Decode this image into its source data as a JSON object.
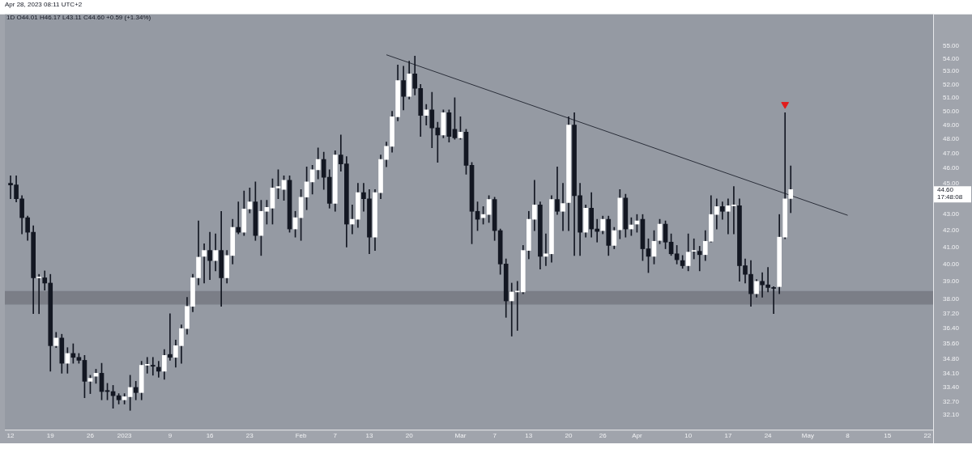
{
  "chart_data": {
    "type": "candlestick",
    "title": "1D  O44.01  H46.17  L43.11  C44.60  +0.59 (+1.34%)",
    "subtitle": "Apr 28, 2023 08:11 UTC+2",
    "x": [
      "2022-12-12",
      "2022-12-13",
      "2022-12-14",
      "2022-12-15",
      "2022-12-16",
      "2022-12-17",
      "2022-12-18",
      "2022-12-19",
      "2022-12-20",
      "2022-12-21",
      "2022-12-22",
      "2022-12-23",
      "2022-12-24",
      "2022-12-25",
      "2022-12-26",
      "2022-12-27",
      "2022-12-28",
      "2022-12-29",
      "2022-12-30",
      "2022-12-31",
      "2023-01-01",
      "2023-01-02",
      "2023-01-03",
      "2023-01-04",
      "2023-01-05",
      "2023-01-06",
      "2023-01-07",
      "2023-01-08",
      "2023-01-09",
      "2023-01-10",
      "2023-01-11",
      "2023-01-12",
      "2023-01-13",
      "2023-01-14",
      "2023-01-15",
      "2023-01-16",
      "2023-01-17",
      "2023-01-18",
      "2023-01-19",
      "2023-01-20",
      "2023-01-21",
      "2023-01-22",
      "2023-01-23",
      "2023-01-24",
      "2023-01-25",
      "2023-01-26",
      "2023-01-27",
      "2023-01-28",
      "2023-01-29",
      "2023-01-30",
      "2023-01-31",
      "2023-02-01",
      "2023-02-02",
      "2023-02-03",
      "2023-02-04",
      "2023-02-05",
      "2023-02-06",
      "2023-02-07",
      "2023-02-08",
      "2023-02-09",
      "2023-02-10",
      "2023-02-11",
      "2023-02-12",
      "2023-02-13",
      "2023-02-14",
      "2023-02-15",
      "2023-02-16",
      "2023-02-17",
      "2023-02-18",
      "2023-02-19",
      "2023-02-20",
      "2023-02-21",
      "2023-02-22",
      "2023-02-23",
      "2023-02-24",
      "2023-02-25",
      "2023-02-26",
      "2023-02-27",
      "2023-02-28",
      "2023-03-01",
      "2023-03-02",
      "2023-03-03",
      "2023-03-04",
      "2023-03-05",
      "2023-03-06",
      "2023-03-07",
      "2023-03-08",
      "2023-03-09",
      "2023-03-10",
      "2023-03-11",
      "2023-03-12",
      "2023-03-13",
      "2023-03-14",
      "2023-03-15",
      "2023-03-16",
      "2023-03-17",
      "2023-03-18",
      "2023-03-19",
      "2023-03-20",
      "2023-03-21",
      "2023-03-22",
      "2023-03-23",
      "2023-03-24",
      "2023-03-25",
      "2023-03-26",
      "2023-03-27",
      "2023-03-28",
      "2023-03-29",
      "2023-03-30",
      "2023-03-31",
      "2023-04-01",
      "2023-04-02",
      "2023-04-03",
      "2023-04-04",
      "2023-04-05",
      "2023-04-06",
      "2023-04-07",
      "2023-04-08",
      "2023-04-09",
      "2023-04-10",
      "2023-04-11",
      "2023-04-12",
      "2023-04-13",
      "2023-04-14",
      "2023-04-15",
      "2023-04-16",
      "2023-04-17",
      "2023-04-18",
      "2023-04-19",
      "2023-04-20",
      "2023-04-21",
      "2023-04-22",
      "2023-04-23",
      "2023-04-24",
      "2023-04-25",
      "2023-04-26",
      "2023-04-27",
      "2023-04-28"
    ],
    "ohlc": [
      [
        45.0,
        45.5,
        44.0,
        44.9
      ],
      [
        44.9,
        45.5,
        43.8,
        44.0
      ],
      [
        44.0,
        44.2,
        41.8,
        42.8
      ],
      [
        42.8,
        42.9,
        41.4,
        41.9
      ],
      [
        41.9,
        42.3,
        37.2,
        39.2
      ],
      [
        39.2,
        39.4,
        37.2,
        39.25
      ],
      [
        39.2,
        39.6,
        38.5,
        38.9
      ],
      [
        38.9,
        39.4,
        34.2,
        35.5
      ],
      [
        35.5,
        36.2,
        35.4,
        35.9
      ],
      [
        35.9,
        36.1,
        34.1,
        34.6
      ],
      [
        34.6,
        35.4,
        34.1,
        35.1
      ],
      [
        35.1,
        35.6,
        34.6,
        34.9
      ],
      [
        34.9,
        35.1,
        34.6,
        34.75
      ],
      [
        34.75,
        35.0,
        32.9,
        33.7
      ],
      [
        33.7,
        34.0,
        33.1,
        33.85
      ],
      [
        33.95,
        34.3,
        33.6,
        34.1
      ],
      [
        34.1,
        34.6,
        32.8,
        33.2
      ],
      [
        33.25,
        33.6,
        32.8,
        33.2
      ],
      [
        33.2,
        33.5,
        32.4,
        33.0
      ],
      [
        33.0,
        33.1,
        32.6,
        32.8
      ],
      [
        32.8,
        33.1,
        32.6,
        32.95
      ],
      [
        32.95,
        34.0,
        32.3,
        33.4
      ],
      [
        33.4,
        33.7,
        32.8,
        33.15
      ],
      [
        33.15,
        34.7,
        32.8,
        34.5
      ],
      [
        34.5,
        34.9,
        34.1,
        34.55
      ],
      [
        34.5,
        34.9,
        34.0,
        34.45
      ],
      [
        34.4,
        34.7,
        33.9,
        34.2
      ],
      [
        34.2,
        35.3,
        33.8,
        35.0
      ],
      [
        35.05,
        37.2,
        34.75,
        34.9
      ],
      [
        34.9,
        35.8,
        34.4,
        35.5
      ],
      [
        35.5,
        36.6,
        34.6,
        36.4
      ],
      [
        36.4,
        38.1,
        36.1,
        37.6
      ],
      [
        37.6,
        39.4,
        37.3,
        39.2
      ],
      [
        39.2,
        42.6,
        38.8,
        40.4
      ],
      [
        40.45,
        41.2,
        38.9,
        40.8
      ],
      [
        40.8,
        41.9,
        39.1,
        40.2
      ],
      [
        40.2,
        41.8,
        39.6,
        40.8
      ],
      [
        40.8,
        43.2,
        37.6,
        39.2
      ],
      [
        39.2,
        40.8,
        38.9,
        40.5
      ],
      [
        40.5,
        42.7,
        40.0,
        42.2
      ],
      [
        42.2,
        43.8,
        41.8,
        41.9
      ],
      [
        41.9,
        44.5,
        41.7,
        43.35
      ],
      [
        43.35,
        44.7,
        43.1,
        43.8
      ],
      [
        43.8,
        45.1,
        41.4,
        41.7
      ],
      [
        41.7,
        43.9,
        40.5,
        43.2
      ],
      [
        43.2,
        43.9,
        42.4,
        43.45
      ],
      [
        43.4,
        45.3,
        42.4,
        44.7
      ],
      [
        44.7,
        45.9,
        44.0,
        44.8
      ],
      [
        44.6,
        45.5,
        43.9,
        45.2
      ],
      [
        45.2,
        45.5,
        41.9,
        42.1
      ],
      [
        42.1,
        43.2,
        41.6,
        42.8
      ],
      [
        42.8,
        44.6,
        41.4,
        44.1
      ],
      [
        44.1,
        46.1,
        43.3,
        45.1
      ],
      [
        45.1,
        46.2,
        44.3,
        45.9
      ],
      [
        45.9,
        47.4,
        45.3,
        46.6
      ],
      [
        46.6,
        47.1,
        44.6,
        45.4
      ],
      [
        45.4,
        45.9,
        43.4,
        43.7
      ],
      [
        43.7,
        47.2,
        43.2,
        46.9
      ],
      [
        46.9,
        48.3,
        45.8,
        46.3
      ],
      [
        46.3,
        46.8,
        41.0,
        42.4
      ],
      [
        42.4,
        43.6,
        41.8,
        42.7
      ],
      [
        42.7,
        45.0,
        42.2,
        44.4
      ],
      [
        44.4,
        45.0,
        43.2,
        44.0
      ],
      [
        44.0,
        44.6,
        40.6,
        41.6
      ],
      [
        41.6,
        44.6,
        40.8,
        44.4
      ],
      [
        44.4,
        46.9,
        44.0,
        46.6
      ],
      [
        46.6,
        47.8,
        46.1,
        47.5
      ],
      [
        47.5,
        50.0,
        47.1,
        49.6
      ],
      [
        49.6,
        53.5,
        49.3,
        52.3
      ],
      [
        52.3,
        53.4,
        50.1,
        51.1
      ],
      [
        51.1,
        53.8,
        50.9,
        52.8
      ],
      [
        52.8,
        54.2,
        51.2,
        51.7
      ],
      [
        51.7,
        52.0,
        48.2,
        49.7
      ],
      [
        49.7,
        50.5,
        49.0,
        50.1
      ],
      [
        50.1,
        51.4,
        47.4,
        48.8
      ],
      [
        48.8,
        49.2,
        46.4,
        48.3
      ],
      [
        48.3,
        50.1,
        48.1,
        49.9
      ],
      [
        49.9,
        50.1,
        47.8,
        48.2
      ],
      [
        48.7,
        51.0,
        48.0,
        48.1
      ],
      [
        48.1,
        49.6,
        48.0,
        48.5
      ],
      [
        48.5,
        48.7,
        45.6,
        46.2
      ],
      [
        46.2,
        46.4,
        41.2,
        43.2
      ],
      [
        43.2,
        43.8,
        42.0,
        42.7
      ],
      [
        42.8,
        43.5,
        42.4,
        43.0
      ],
      [
        43.0,
        44.2,
        42.5,
        43.95
      ],
      [
        43.95,
        44.1,
        41.4,
        42.0
      ],
      [
        42.0,
        42.1,
        39.4,
        40.0
      ],
      [
        40.0,
        40.3,
        37.0,
        37.9
      ],
      [
        37.9,
        38.9,
        36.0,
        38.4
      ],
      [
        38.4,
        39.0,
        36.3,
        38.45
      ],
      [
        38.4,
        41.1,
        38.3,
        40.8
      ],
      [
        40.8,
        43.2,
        40.3,
        42.7
      ],
      [
        42.7,
        45.2,
        42.0,
        43.6
      ],
      [
        43.6,
        43.8,
        39.7,
        40.45
      ],
      [
        40.45,
        41.8,
        39.9,
        40.6
      ],
      [
        40.6,
        44.2,
        40.1,
        43.95
      ],
      [
        43.95,
        46.1,
        43.0,
        43.2
      ],
      [
        43.2,
        45.0,
        42.0,
        43.7
      ],
      [
        43.75,
        49.6,
        42.0,
        49.0
      ],
      [
        49.0,
        49.9,
        40.5,
        44.2
      ],
      [
        44.2,
        45.0,
        40.5,
        41.9
      ],
      [
        41.9,
        43.6,
        41.6,
        43.4
      ],
      [
        43.4,
        44.4,
        41.6,
        42.1
      ],
      [
        42.1,
        42.7,
        41.3,
        41.95
      ],
      [
        42.0,
        42.9,
        41.8,
        42.7
      ],
      [
        42.7,
        42.9,
        40.5,
        41.1
      ],
      [
        41.1,
        42.2,
        40.9,
        42.0
      ],
      [
        42.05,
        44.6,
        41.5,
        44.05
      ],
      [
        44.05,
        44.3,
        41.6,
        42.1
      ],
      [
        42.1,
        42.8,
        41.7,
        42.35
      ],
      [
        42.4,
        43.0,
        41.9,
        42.6
      ],
      [
        42.7,
        43.0,
        40.2,
        40.9
      ],
      [
        40.9,
        41.5,
        39.5,
        40.45
      ],
      [
        40.45,
        42.0,
        40.0,
        41.35
      ],
      [
        41.4,
        42.7,
        41.2,
        42.4
      ],
      [
        42.4,
        42.6,
        40.9,
        41.3
      ],
      [
        41.3,
        41.8,
        40.5,
        40.6
      ],
      [
        40.6,
        41.1,
        40.0,
        40.25
      ],
      [
        40.2,
        40.5,
        39.75,
        39.9
      ],
      [
        39.9,
        41.8,
        39.6,
        40.7
      ],
      [
        40.75,
        41.5,
        40.3,
        40.75
      ],
      [
        40.75,
        41.05,
        39.6,
        40.55
      ],
      [
        40.55,
        42.0,
        40.2,
        41.35
      ],
      [
        41.35,
        44.2,
        41.3,
        43.0
      ],
      [
        43.0,
        44.0,
        42.1,
        43.5
      ],
      [
        43.5,
        43.8,
        42.7,
        43.2
      ],
      [
        43.2,
        44.0,
        41.8,
        43.55
      ],
      [
        43.55,
        44.8,
        41.8,
        43.6
      ],
      [
        43.55,
        44.0,
        39.0,
        39.9
      ],
      [
        39.9,
        40.3,
        38.9,
        39.4
      ],
      [
        39.4,
        40.2,
        37.6,
        38.3
      ],
      [
        38.3,
        39.1,
        38.1,
        39.0
      ],
      [
        39.0,
        39.5,
        38.1,
        38.8
      ],
      [
        38.8,
        39.8,
        38.4,
        38.65
      ],
      [
        38.65,
        38.7,
        37.2,
        38.6
      ],
      [
        38.7,
        43.0,
        38.3,
        41.6
      ],
      [
        41.6,
        49.9,
        41.5,
        44.0
      ],
      [
        44.01,
        46.17,
        43.11,
        44.6
      ]
    ],
    "colors": [
      "#131722",
      "#131722",
      "#131722",
      "#131722",
      "#131722",
      "#ffffff",
      "#131722",
      "#131722",
      "#ffffff",
      "#131722",
      "#ffffff",
      "#131722",
      "#131722",
      "#131722",
      "#ffffff",
      "#ffffff",
      "#131722",
      "#131722",
      "#131722",
      "#131722",
      "#ffffff",
      "#ffffff",
      "#131722",
      "#ffffff",
      "#ffffff",
      "#131722",
      "#131722",
      "#ffffff",
      "#131722",
      "#ffffff",
      "#ffffff",
      "#ffffff",
      "#ffffff",
      "#ffffff",
      "#ffffff",
      "#131722",
      "#ffffff",
      "#131722",
      "#ffffff",
      "#ffffff",
      "#131722",
      "#ffffff",
      "#ffffff",
      "#131722",
      "#ffffff",
      "#ffffff",
      "#ffffff",
      "#ffffff",
      "#ffffff",
      "#131722",
      "#ffffff",
      "#ffffff",
      "#ffffff",
      "#ffffff",
      "#ffffff",
      "#131722",
      "#131722",
      "#ffffff",
      "#131722",
      "#131722",
      "#ffffff",
      "#ffffff",
      "#131722",
      "#131722",
      "#ffffff",
      "#ffffff",
      "#ffffff",
      "#ffffff",
      "#ffffff",
      "#131722",
      "#ffffff",
      "#131722",
      "#131722",
      "#ffffff",
      "#131722",
      "#131722",
      "#ffffff",
      "#131722",
      "#131722",
      "#ffffff",
      "#131722",
      "#131722",
      "#131722",
      "#ffffff",
      "#ffffff",
      "#131722",
      "#131722",
      "#131722",
      "#ffffff",
      "#ffffff",
      "#ffffff",
      "#ffffff",
      "#ffffff",
      "#131722",
      "#ffffff",
      "#ffffff",
      "#131722",
      "#ffffff",
      "#ffffff",
      "#131722",
      "#131722",
      "#ffffff",
      "#131722",
      "#131722",
      "#ffffff",
      "#131722",
      "#ffffff",
      "#ffffff",
      "#131722",
      "#ffffff",
      "#ffffff",
      "#131722",
      "#131722",
      "#ffffff",
      "#ffffff",
      "#131722",
      "#131722",
      "#131722",
      "#131722",
      "#ffffff",
      "#ffffff",
      "#131722",
      "#ffffff",
      "#ffffff",
      "#ffffff",
      "#131722",
      "#ffffff",
      "#ffffff",
      "#131722",
      "#131722",
      "#131722",
      "#ffffff",
      "#131722",
      "#131722",
      "#131722",
      "#ffffff",
      "#ffffff",
      "#ffffff"
    ],
    "series": [
      {
        "type": "line",
        "x": [
          "2023-02-16",
          "2023-05-08"
        ],
        "values": [
          54.3,
          42.95
        ],
        "color": "#2a2e39"
      },
      {
        "type": "scatter",
        "x": [
          "2023-04-27"
        ],
        "values": [
          50.5
        ],
        "color": "#e21b1b",
        "marker": "triangle"
      }
    ],
    "xlim": [
      "2022-12-11",
      "2023-05-23"
    ],
    "xticks": [
      {
        "value": "2022-12-12",
        "label": "12"
      },
      {
        "value": "2022-12-19",
        "label": "19"
      },
      {
        "value": "2022-12-26",
        "label": "26"
      },
      {
        "value": "2023-01-01",
        "label": "2023"
      },
      {
        "value": "2023-01-09",
        "label": "9"
      },
      {
        "value": "2023-01-16",
        "label": "16"
      },
      {
        "value": "2023-01-23",
        "label": "23"
      },
      {
        "value": "2023-02-01",
        "label": "Feb"
      },
      {
        "value": "2023-02-07",
        "label": "7"
      },
      {
        "value": "2023-02-13",
        "label": "13"
      },
      {
        "value": "2023-02-20",
        "label": "20"
      },
      {
        "value": "2023-03-01",
        "label": "Mar"
      },
      {
        "value": "2023-03-07",
        "label": "7"
      },
      {
        "value": "2023-03-13",
        "label": "13"
      },
      {
        "value": "2023-03-20",
        "label": "20"
      },
      {
        "value": "2023-03-26",
        "label": "26"
      },
      {
        "value": "2023-04-01",
        "label": "Apr"
      },
      {
        "value": "2023-04-10",
        "label": "10"
      },
      {
        "value": "2023-04-17",
        "label": "17"
      },
      {
        "value": "2023-04-24",
        "label": "24"
      },
      {
        "value": "2023-05-01",
        "label": "May"
      },
      {
        "value": "2023-05-08",
        "label": "8"
      },
      {
        "value": "2023-05-15",
        "label": "15"
      },
      {
        "value": "2023-05-22",
        "label": "22"
      }
    ],
    "ylim": [
      31.4,
      57.6
    ],
    "yticks": [
      {
        "value": 32.1,
        "label": "32.10"
      },
      {
        "value": 32.7,
        "label": "32.70"
      },
      {
        "value": 33.4,
        "label": "33.40"
      },
      {
        "value": 34.1,
        "label": "34.10"
      },
      {
        "value": 34.8,
        "label": "34.80"
      },
      {
        "value": 35.6,
        "label": "35.60"
      },
      {
        "value": 36.4,
        "label": "36.40"
      },
      {
        "value": 37.2,
        "label": "37.20"
      },
      {
        "value": 38,
        "label": "38.00"
      },
      {
        "value": 39,
        "label": "39.00"
      },
      {
        "value": 40,
        "label": "40.00"
      },
      {
        "value": 41,
        "label": "41.00"
      },
      {
        "value": 42,
        "label": "42.00"
      },
      {
        "value": 43,
        "label": "43.00"
      },
      {
        "value": 45,
        "label": "45.00"
      },
      {
        "value": 46,
        "label": "46.00"
      },
      {
        "value": 47,
        "label": "47.00"
      },
      {
        "value": 48,
        "label": "48.00"
      },
      {
        "value": 49,
        "label": "49.00"
      },
      {
        "value": 50,
        "label": "50.00"
      },
      {
        "value": 51,
        "label": "51.00"
      },
      {
        "value": 52,
        "label": "52.00"
      },
      {
        "value": 53,
        "label": "53.00"
      },
      {
        "value": 54,
        "label": "54.00"
      },
      {
        "value": 55,
        "label": "55.00"
      }
    ],
    "bands": [
      {
        "axis": "y",
        "from": 37.7,
        "to": 38.45,
        "color": "#7b7e87"
      }
    ],
    "log": true,
    "annotations": [
      "44.60",
      "17:48:08"
    ]
  }
}
